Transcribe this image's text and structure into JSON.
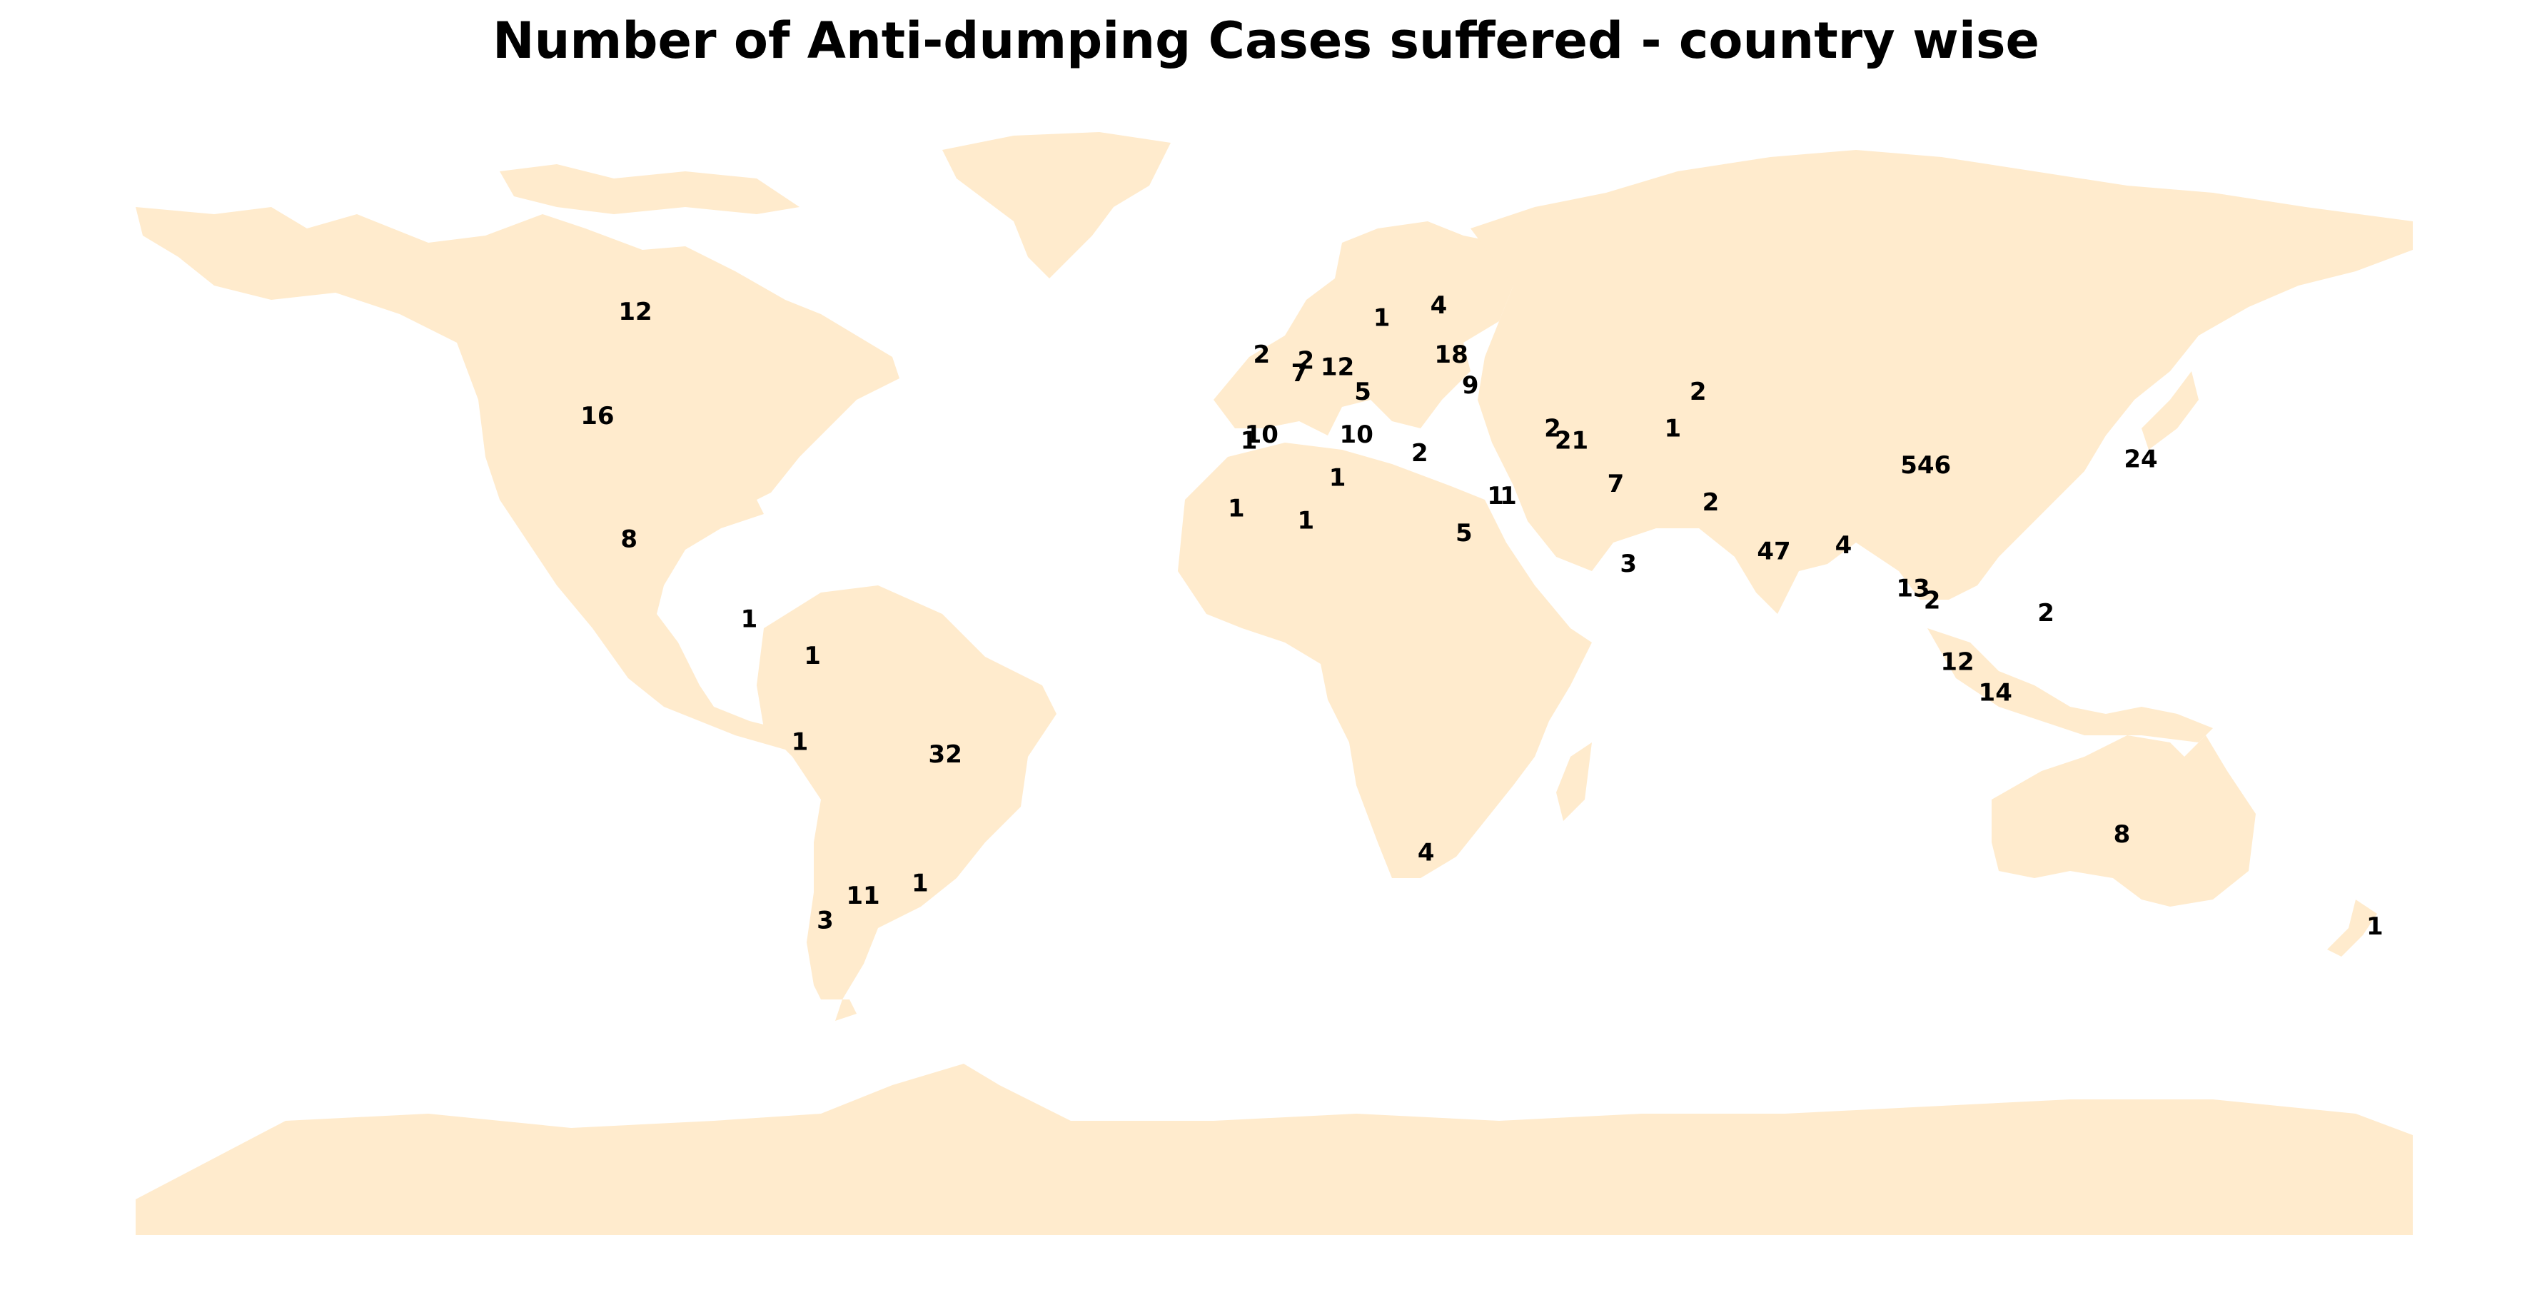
{
  "title": "Number of Anti-dumping Cases suffered - country wise",
  "land_color": "#FFEBCD",
  "labels": [
    {
      "value": "12",
      "lon": -101,
      "lat": 60
    },
    {
      "value": "16",
      "lon": -107,
      "lat": 43
    },
    {
      "value": "8",
      "lon": -102,
      "lat": 23
    },
    {
      "value": "1",
      "lon": -83,
      "lat": 10
    },
    {
      "value": "1",
      "lon": -73,
      "lat": 4
    },
    {
      "value": "1",
      "lon": -75,
      "lat": -10
    },
    {
      "value": "32",
      "lon": -52,
      "lat": -12
    },
    {
      "value": "1",
      "lon": -56,
      "lat": -33
    },
    {
      "value": "11",
      "lon": -65,
      "lat": -35
    },
    {
      "value": "3",
      "lon": -71,
      "lat": -39
    },
    {
      "value": "2",
      "lon": -2,
      "lat": 53
    },
    {
      "value": "2",
      "lon": 5,
      "lat": 52
    },
    {
      "value": "7",
      "lon": 4,
      "lat": 50
    },
    {
      "value": "12",
      "lon": 10,
      "lat": 51
    },
    {
      "value": "5",
      "lon": 14,
      "lat": 47
    },
    {
      "value": "10",
      "lon": -2,
      "lat": 40
    },
    {
      "value": "1",
      "lon": -4,
      "lat": 39
    },
    {
      "value": "10",
      "lon": 13,
      "lat": 40
    },
    {
      "value": "1",
      "lon": 17,
      "lat": 59
    },
    {
      "value": "4",
      "lon": 26,
      "lat": 61
    },
    {
      "value": "18",
      "lon": 28,
      "lat": 53
    },
    {
      "value": "9",
      "lon": 31,
      "lat": 48
    },
    {
      "value": "2",
      "lon": 23,
      "lat": 37
    },
    {
      "value": "1",
      "lon": 10,
      "lat": 33
    },
    {
      "value": "1",
      "lon": -6,
      "lat": 28
    },
    {
      "value": "1",
      "lon": 5,
      "lat": 26
    },
    {
      "value": "5",
      "lon": 30,
      "lat": 24
    },
    {
      "value": "1",
      "lon": 35,
      "lat": 30
    },
    {
      "value": "1",
      "lon": 37,
      "lat": 30
    },
    {
      "value": "2",
      "lon": 44,
      "lat": 41
    },
    {
      "value": "21",
      "lon": 47,
      "lat": 39
    },
    {
      "value": "7",
      "lon": 54,
      "lat": 32
    },
    {
      "value": "3",
      "lon": 56,
      "lat": 19
    },
    {
      "value": "2",
      "lon": 67,
      "lat": 47
    },
    {
      "value": "1",
      "lon": 63,
      "lat": 41
    },
    {
      "value": "2",
      "lon": 69,
      "lat": 29
    },
    {
      "value": "47",
      "lon": 79,
      "lat": 21
    },
    {
      "value": "4",
      "lon": 90,
      "lat": 22
    },
    {
      "value": "546",
      "lon": 103,
      "lat": 35
    },
    {
      "value": "24",
      "lon": 137,
      "lat": 36
    },
    {
      "value": "13",
      "lon": 101,
      "lat": 15
    },
    {
      "value": "2",
      "lon": 104,
      "lat": 13
    },
    {
      "value": "2",
      "lon": 122,
      "lat": 11
    },
    {
      "value": "12",
      "lon": 108,
      "lat": 3
    },
    {
      "value": "14",
      "lon": 114,
      "lat": -2
    },
    {
      "value": "8",
      "lon": 134,
      "lat": -25
    },
    {
      "value": "4",
      "lon": 24,
      "lat": -28
    },
    {
      "value": "1",
      "lon": 174,
      "lat": -40
    }
  ]
}
